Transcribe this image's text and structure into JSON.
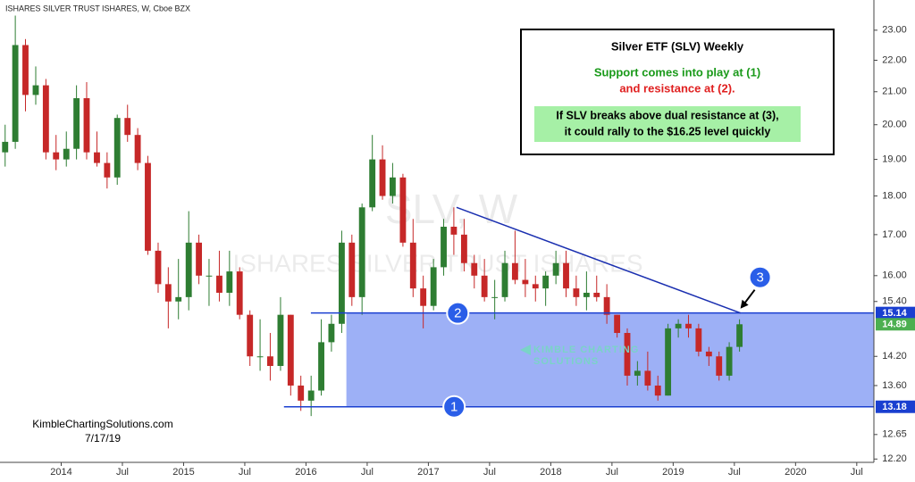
{
  "chart_data": {
    "type": "candlestick",
    "title": "ISHARES SILVER TRUST ISHARES, W, Cboe BZX",
    "watermark": [
      "SLV, W",
      "ISHARES SILVER TRUST ISHARES"
    ],
    "log_scale": true,
    "up_color": "#2e7d32",
    "down_color": "#c62828",
    "x": [
      2013.542,
      2013.625,
      2013.708,
      2013.792,
      2013.875,
      2013.958,
      2014.042,
      2014.125,
      2014.208,
      2014.292,
      2014.375,
      2014.458,
      2014.542,
      2014.625,
      2014.708,
      2014.792,
      2014.875,
      2014.958,
      2015.042,
      2015.125,
      2015.208,
      2015.292,
      2015.375,
      2015.458,
      2015.542,
      2015.625,
      2015.708,
      2015.792,
      2015.875,
      2015.958,
      2016.042,
      2016.125,
      2016.208,
      2016.292,
      2016.375,
      2016.458,
      2016.542,
      2016.625,
      2016.708,
      2016.792,
      2016.875,
      2016.958,
      2017.042,
      2017.125,
      2017.208,
      2017.292,
      2017.375,
      2017.458,
      2017.542,
      2017.625,
      2017.708,
      2017.792,
      2017.875,
      2017.958,
      2018.042,
      2018.125,
      2018.208,
      2018.292,
      2018.375,
      2018.458,
      2018.542,
      2018.625,
      2018.708,
      2018.792,
      2018.875,
      2018.958,
      2019.042,
      2019.125,
      2019.208,
      2019.292,
      2019.375,
      2019.458,
      2019.542
    ],
    "open": [
      19.2,
      19.5,
      22.5,
      20.9,
      21.2,
      19.2,
      19.0,
      19.3,
      20.8,
      19.2,
      18.9,
      18.5,
      20.2,
      19.7,
      18.9,
      16.6,
      15.8,
      15.4,
      15.5,
      16.8,
      16.0,
      16.0,
      15.6,
      16.1,
      15.1,
      14.2,
      14.2,
      14.0,
      15.1,
      13.6,
      13.3,
      13.5,
      14.5,
      14.9,
      16.8,
      15.5,
      17.7,
      19.0,
      18.0,
      18.5,
      16.8,
      15.7,
      15.3,
      16.2,
      17.2,
      17.0,
      16.3,
      16.0,
      15.5,
      15.5,
      16.3,
      15.9,
      15.8,
      15.7,
      16.0,
      16.3,
      15.7,
      15.5,
      15.6,
      15.5,
      15.1,
      14.7,
      13.8,
      13.9,
      13.6,
      13.4,
      14.8,
      14.9,
      14.8,
      14.3,
      14.2,
      13.8,
      14.4
    ],
    "high": [
      20.0,
      23.5,
      22.7,
      21.8,
      21.4,
      19.7,
      19.8,
      21.2,
      21.3,
      19.8,
      19.2,
      20.3,
      20.6,
      19.9,
      19.1,
      16.8,
      16.2,
      16.4,
      17.6,
      17.0,
      16.4,
      16.6,
      16.6,
      16.2,
      15.2,
      15.0,
      14.7,
      15.5,
      15.1,
      13.8,
      13.8,
      15.0,
      15.1,
      17.1,
      17.0,
      17.8,
      19.7,
      19.4,
      18.9,
      18.6,
      17.4,
      16.0,
      16.4,
      17.4,
      17.7,
      17.4,
      16.5,
      16.4,
      15.9,
      16.6,
      17.1,
      16.4,
      16.0,
      16.1,
      16.6,
      16.6,
      16.0,
      16.1,
      16.0,
      15.8,
      15.1,
      14.8,
      14.1,
      14.3,
      13.8,
      14.9,
      15.0,
      15.1,
      14.9,
      14.4,
      14.3,
      14.5,
      15.0
    ],
    "low": [
      18.8,
      19.3,
      20.4,
      20.6,
      19.0,
      18.7,
      18.8,
      19.0,
      19.0,
      18.8,
      18.2,
      18.3,
      19.5,
      18.7,
      16.5,
      15.6,
      14.8,
      15.0,
      15.2,
      15.8,
      15.3,
      15.4,
      15.3,
      15.0,
      14.0,
      13.9,
      13.7,
      13.9,
      13.4,
      13.1,
      13.0,
      13.4,
      14.3,
      14.7,
      15.3,
      15.1,
      17.6,
      17.9,
      17.8,
      16.7,
      15.5,
      14.8,
      15.2,
      16.0,
      16.5,
      16.1,
      15.7,
      15.4,
      15.0,
      15.4,
      15.8,
      15.5,
      15.4,
      15.3,
      15.8,
      15.5,
      15.3,
      15.2,
      15.4,
      14.9,
      14.6,
      13.6,
      13.6,
      13.5,
      13.3,
      13.4,
      14.6,
      14.6,
      14.2,
      14.0,
      13.7,
      13.7,
      14.3
    ],
    "close": [
      19.5,
      22.5,
      20.9,
      21.2,
      19.2,
      19.0,
      19.3,
      20.8,
      19.2,
      18.9,
      18.5,
      20.2,
      19.7,
      18.9,
      16.6,
      15.8,
      15.4,
      15.5,
      16.8,
      16.0,
      16.0,
      15.6,
      16.1,
      15.1,
      14.2,
      14.2,
      14.0,
      15.1,
      13.6,
      13.3,
      13.5,
      14.5,
      14.9,
      16.8,
      15.5,
      17.7,
      19.0,
      18.0,
      18.5,
      16.8,
      15.7,
      15.3,
      16.2,
      17.2,
      17.0,
      16.3,
      16.0,
      15.5,
      15.5,
      16.3,
      15.9,
      15.8,
      15.7,
      16.0,
      16.3,
      15.7,
      15.5,
      15.6,
      15.5,
      15.1,
      14.7,
      13.8,
      13.9,
      13.6,
      13.4,
      14.8,
      14.9,
      14.8,
      14.3,
      14.2,
      13.8,
      14.4,
      14.89
    ],
    "xlim": [
      2013.5,
      2020.64
    ],
    "xticks": [
      2014,
      {
        "value": 2014.5,
        "label": "Jul"
      },
      2015,
      {
        "value": 2015.5,
        "label": "Jul"
      },
      2016,
      {
        "value": 2016.5,
        "label": "Jul"
      },
      2017,
      {
        "value": 2017.5,
        "label": "Jul"
      },
      2018,
      {
        "value": 2018.5,
        "label": "Jul"
      },
      2019,
      {
        "value": 2019.5,
        "label": "Jul"
      },
      2020,
      {
        "value": 2020.5,
        "label": "Jul"
      }
    ],
    "ylim": [
      12.14,
      24.05
    ],
    "yticks": [
      {
        "value": 12.2,
        "label": "12.20"
      },
      12.65,
      {
        "value": 13.6,
        "label": "13.60"
      },
      {
        "value": 14.2,
        "label": "14.20"
      },
      {
        "value": 15.4,
        "label": "15.40"
      },
      {
        "value": 16,
        "label": "16.00"
      },
      {
        "value": 17,
        "label": "17.00"
      },
      {
        "value": 18,
        "label": "18.00"
      },
      {
        "value": 19,
        "label": "19.00"
      },
      {
        "value": 20,
        "label": "20.00"
      },
      {
        "value": 21,
        "label": "21.00"
      },
      {
        "value": 22,
        "label": "22.00"
      },
      {
        "value": 23,
        "label": "23.00"
      }
    ],
    "levels": [
      {
        "value": 15.14,
        "from": 2016.04,
        "color": "#1a3fd0"
      },
      {
        "value": 13.18,
        "from": 2015.82,
        "color": "#1a3fd0"
      }
    ],
    "zone_from": 2016.33,
    "zone_color": "#5b7cf0",
    "last_price": 14.89,
    "last_price_color": "#4caf50",
    "trendline": {
      "x": [
        2017.23,
        2019.55
      ],
      "y": [
        17.7,
        15.14
      ],
      "color": "#1a2fb0"
    },
    "markers": [
      {
        "label": "1",
        "x": 2017.21,
        "y": 13.18
      },
      {
        "label": "2",
        "x": 2017.24,
        "y": 15.14
      },
      {
        "label": "3",
        "x": 2019.71,
        "y": 15.96
      }
    ],
    "annotation": {
      "title": "Silver ETF (SLV) Weekly",
      "support": "Support comes into play at (1)",
      "resistance": "and resistance at (2).",
      "breakout": [
        "If SLV breaks above dual resistance at (3),",
        "it could rally to the $16.25 level quickly"
      ]
    },
    "logo": [
      "KIMBLE CHARTING",
      "SOLUTIONS"
    ],
    "footer": [
      "KimbleChartingSolutions.com",
      "7/17/19"
    ]
  }
}
